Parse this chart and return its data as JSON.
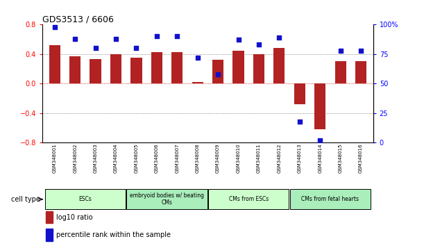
{
  "title": "GDS3513 / 6606",
  "samples": [
    "GSM348001",
    "GSM348002",
    "GSM348003",
    "GSM348004",
    "GSM348005",
    "GSM348006",
    "GSM348007",
    "GSM348008",
    "GSM348009",
    "GSM348010",
    "GSM348011",
    "GSM348012",
    "GSM348013",
    "GSM348014",
    "GSM348015",
    "GSM348016"
  ],
  "log10_ratio": [
    0.52,
    0.37,
    0.33,
    0.4,
    0.35,
    0.43,
    0.43,
    0.02,
    0.32,
    0.45,
    0.4,
    0.48,
    -0.28,
    -0.62,
    0.3,
    0.3
  ],
  "percentile_rank": [
    98,
    88,
    80,
    88,
    80,
    90,
    90,
    72,
    58,
    87,
    83,
    89,
    18,
    2,
    78,
    78
  ],
  "ylim_left": [
    -0.8,
    0.8
  ],
  "ylim_right": [
    0,
    100
  ],
  "yticks_left": [
    -0.8,
    -0.4,
    0.0,
    0.4,
    0.8
  ],
  "yticks_right": [
    0,
    25,
    50,
    75,
    100
  ],
  "ytick_labels_right": [
    "0",
    "25",
    "50",
    "75",
    "100%"
  ],
  "bar_color": "#b22222",
  "dot_color": "#1111cc",
  "cell_type_groups": [
    {
      "label": "ESCs",
      "start": 0,
      "end": 3
    },
    {
      "label": "embryoid bodies w/ beating\nCMs",
      "start": 4,
      "end": 7
    },
    {
      "label": "CMs from ESCs",
      "start": 8,
      "end": 11
    },
    {
      "label": "CMs from fetal hearts",
      "start": 12,
      "end": 15
    }
  ],
  "group_colors": [
    "#ccffcc",
    "#aaeebb",
    "#ccffcc",
    "#aaeebb"
  ],
  "cell_type_label": "cell type",
  "legend_items": [
    {
      "color": "#b22222",
      "label": "log10 ratio"
    },
    {
      "color": "#1111cc",
      "label": "percentile rank within the sample"
    }
  ],
  "dotted_line_color": "#666666",
  "zero_line_color": "#cc0000",
  "sample_box_color": "#cccccc",
  "bar_width": 0.55
}
